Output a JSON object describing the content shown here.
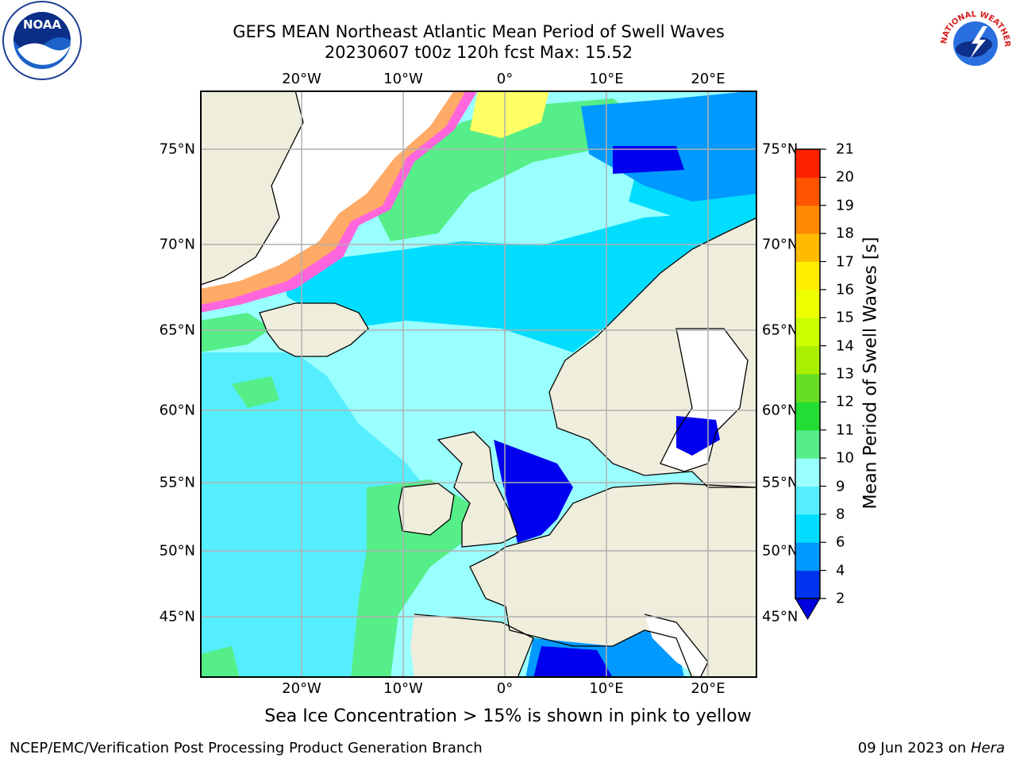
{
  "title_line1": "GEFS MEAN Northeast Atlantic Mean Period of Swell Waves",
  "title_line2": "20230607 t00z 120h fcst   Max: 15.52",
  "lon_labels": [
    "20°W",
    "10°W",
    "0°",
    "10°E",
    "20°E"
  ],
  "lat_labels": [
    "75°N",
    "70°N",
    "65°N",
    "60°N",
    "55°N",
    "50°N",
    "45°N"
  ],
  "colorbar": {
    "label": "Mean Period of Swell Waves [s]",
    "ticks": [
      "2",
      "4",
      "6",
      "8",
      "9",
      "10",
      "11",
      "12",
      "13",
      "14",
      "15",
      "16",
      "17",
      "18",
      "19",
      "20",
      "21"
    ],
    "colors": [
      "#0033ee",
      "#0099ff",
      "#00ddff",
      "#55eeff",
      "#99ffff",
      "#55ee88",
      "#22dd33",
      "#66dd22",
      "#aaee00",
      "#ccff00",
      "#eeff00",
      "#ffee00",
      "#ffbb00",
      "#ff8800",
      "#ff5500",
      "#ff2200"
    ],
    "extend_color": "#0000dd"
  },
  "colors": {
    "land": "#efeddc",
    "ice_white": "#ffffff",
    "sea_base": "#99ffff",
    "sea_light": "#55eeff",
    "sea_cyan": "#00ddff",
    "sea_green": "#55ee88",
    "sea_blue": "#0099ff",
    "sea_deep": "#0000ee",
    "ice_pink": "#ff66dd",
    "ice_orange": "#ffaa66",
    "ice_yellow": "#ffff66",
    "grid": "#b0b0b0"
  },
  "note": "Sea Ice Concentration > 15% is shown in pink to yellow",
  "footer_left": "NCEP/EMC/Verification Post Processing Product Generation Branch",
  "footer_right_prefix": "09 Jun 2023 on ",
  "footer_right_host": "Hera",
  "logos": {
    "noaa_text": "NOAA",
    "nws_text": "NATIONAL WEATHER SERVICE"
  }
}
